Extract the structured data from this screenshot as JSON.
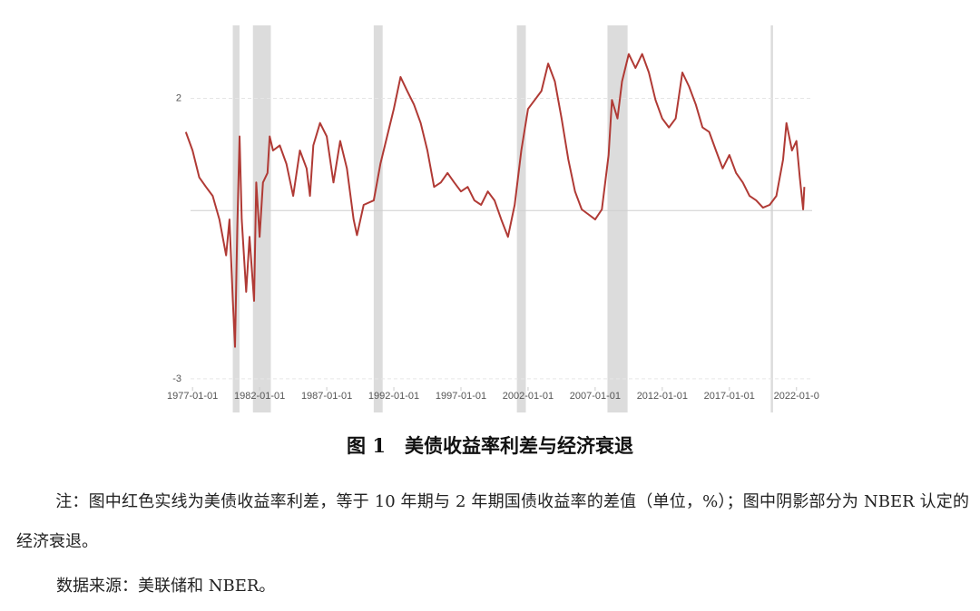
{
  "chart_data": {
    "type": "line",
    "x": [
      "1976-07",
      "1977-01",
      "1977-07",
      "1978-01",
      "1978-07",
      "1979-01",
      "1979-07",
      "1979-10",
      "1980-01",
      "1980-03",
      "1980-05",
      "1980-07",
      "1980-09",
      "1981-01",
      "1981-04",
      "1981-08",
      "1981-10",
      "1982-01",
      "1982-04",
      "1982-08",
      "1982-10",
      "1983-01",
      "1983-07",
      "1984-01",
      "1984-07",
      "1985-01",
      "1985-07",
      "1985-10",
      "1986-01",
      "1986-07",
      "1987-01",
      "1987-07",
      "1988-01",
      "1988-07",
      "1989-01",
      "1989-04",
      "1989-10",
      "1990-07",
      "1991-01",
      "1991-07",
      "1992-01",
      "1992-07",
      "1993-01",
      "1993-07",
      "1994-01",
      "1994-07",
      "1995-01",
      "1995-07",
      "1996-01",
      "1996-07",
      "1997-01",
      "1997-07",
      "1998-01",
      "1998-07",
      "1999-01",
      "1999-07",
      "2000-01",
      "2000-07",
      "2001-01",
      "2001-07",
      "2002-01",
      "2002-07",
      "2003-01",
      "2003-07",
      "2004-01",
      "2004-07",
      "2005-01",
      "2005-07",
      "2006-01",
      "2006-07",
      "2007-01",
      "2007-07",
      "2008-01",
      "2008-04",
      "2008-09",
      "2009-01",
      "2009-07",
      "2010-01",
      "2010-07",
      "2011-01",
      "2011-07",
      "2012-01",
      "2012-07",
      "2013-01",
      "2013-07",
      "2014-01",
      "2014-07",
      "2015-01",
      "2015-07",
      "2016-01",
      "2016-07",
      "2017-01",
      "2017-07",
      "2018-01",
      "2018-07",
      "2019-01",
      "2019-07",
      "2020-01",
      "2020-07",
      "2021-01",
      "2021-04",
      "2021-09",
      "2022-01",
      "2022-04",
      "2022-07",
      "2022-08"
    ],
    "series": [
      {
        "color": "#b03a35",
        "values": [
          1.4,
          1.07,
          0.59,
          0.42,
          0.26,
          -0.16,
          -0.8,
          -0.16,
          -1.61,
          -2.43,
          -0.31,
          1.32,
          -0.16,
          -1.45,
          -0.47,
          -1.61,
          0.5,
          -0.47,
          0.5,
          0.67,
          1.32,
          1.07,
          1.16,
          0.83,
          0.26,
          1.07,
          0.75,
          0.26,
          1.16,
          1.56,
          1.32,
          0.5,
          1.24,
          0.75,
          -0.16,
          -0.44,
          0.1,
          0.18,
          0.83,
          1.32,
          1.81,
          2.38,
          2.13,
          1.89,
          1.56,
          1.07,
          0.42,
          0.5,
          0.67,
          0.5,
          0.34,
          0.42,
          0.18,
          0.1,
          0.34,
          0.18,
          -0.16,
          -0.47,
          0.1,
          1.07,
          1.81,
          1.97,
          2.13,
          2.62,
          2.3,
          1.64,
          0.91,
          0.34,
          0.02,
          -0.07,
          -0.16,
          0.02,
          0.99,
          1.97,
          1.64,
          2.3,
          2.79,
          2.54,
          2.79,
          2.46,
          1.97,
          1.64,
          1.48,
          1.64,
          2.46,
          2.21,
          1.89,
          1.48,
          1.4,
          1.07,
          0.75,
          0.99,
          0.67,
          0.5,
          0.26,
          0.18,
          0.05,
          0.1,
          0.26,
          0.91,
          1.56,
          1.07,
          1.24,
          0.59,
          0.02,
          0.42
        ]
      }
    ],
    "recessions": [
      {
        "start": "1980-01",
        "end": "1980-07"
      },
      {
        "start": "1981-07",
        "end": "1982-11"
      },
      {
        "start": "1990-07",
        "end": "1991-03"
      },
      {
        "start": "2001-03",
        "end": "2001-11"
      },
      {
        "start": "2007-12",
        "end": "2009-06"
      },
      {
        "start": "2020-02",
        "end": "2020-04"
      }
    ],
    "recession_color": "#dcdcdc",
    "xlim": [
      "1975-07",
      "2023-03"
    ],
    "xticks": [
      "1977-01-01",
      "1982-01-01",
      "1987-01-01",
      "1992-01-01",
      "1997-01-01",
      "2002-01-01",
      "2007-01-01",
      "2012-01-01",
      "2017-01-01",
      {
        "value": "2022-01-01",
        "label": "2022-01-0"
      }
    ],
    "ylim": [
      -3.6,
      3.3
    ],
    "yticks": [
      -3,
      2
    ],
    "grid": true
  },
  "caption": "图 1　美债收益率利差与经济衰退",
  "note": "注：图中红色实线为美债收益率利差，等于 10 年期与 2 年期国债收益率的差值（单位，%）；图中阴影部分为 NBER 认定的经济衰退。",
  "source": "数据来源：美联储和 NBER。"
}
